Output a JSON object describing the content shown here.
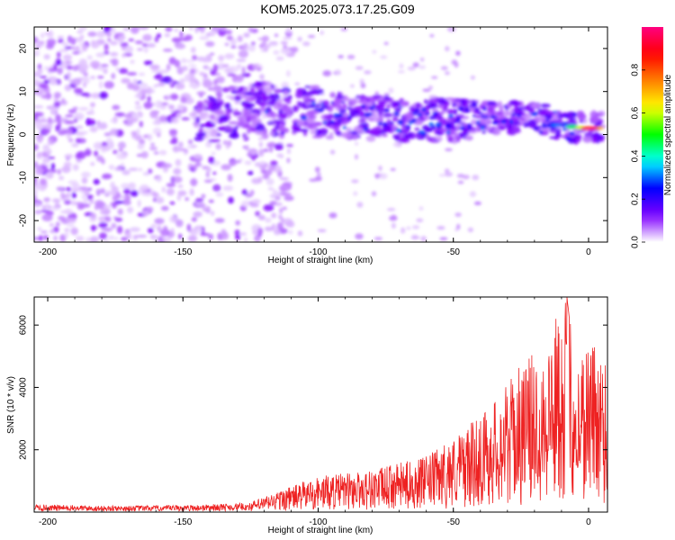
{
  "title": "KOM5.2025.073.17.25.G09",
  "chart_data": [
    {
      "type": "heatmap",
      "xlabel": "Height of straight line (km)",
      "ylabel": "Frequency (Hz)",
      "xlim": [
        -205,
        7
      ],
      "ylim": [
        -25,
        25
      ],
      "xticks": [
        -200,
        -150,
        -100,
        -50,
        0
      ],
      "yticks": [
        -20,
        -10,
        0,
        10,
        20
      ],
      "xtick_labels": [
        "-200",
        "-150",
        "-100",
        "-50",
        "0"
      ],
      "ytick_labels": [
        "-20",
        "-10",
        "0",
        "10",
        "20"
      ],
      "colorbar": {
        "label": "Normalized spectral amplitude",
        "range": [
          0,
          1
        ],
        "ticks": [
          0.0,
          0.2,
          0.4,
          0.6,
          0.8
        ],
        "tick_labels": [
          "0.0",
          "0.2",
          "0.4",
          "0.6",
          "0.8"
        ],
        "colors": [
          "#ffffff",
          "#8000ff",
          "#0000ff",
          "#00ffff",
          "#00ff00",
          "#ffff00",
          "#ff8000",
          "#ff0000",
          "#ff0080"
        ]
      },
      "ridge": [
        {
          "x": -140,
          "y": 4
        },
        {
          "x": -120,
          "y": 6
        },
        {
          "x": -100,
          "y": 5
        },
        {
          "x": -80,
          "y": 4
        },
        {
          "x": -60,
          "y": 3
        },
        {
          "x": -40,
          "y": 4
        },
        {
          "x": -20,
          "y": 4
        },
        {
          "x": -10,
          "y": 2
        },
        {
          "x": 0,
          "y": 1.5
        },
        {
          "x": 5,
          "y": 1.5
        }
      ]
    },
    {
      "type": "line",
      "xlabel": "Height of straight line (km)",
      "ylabel": "SNR (10 * v/v)",
      "xlim": [
        -205,
        7
      ],
      "ylim": [
        0,
        6900
      ],
      "xticks": [
        -200,
        -150,
        -100,
        -50,
        0
      ],
      "yticks": [
        2000,
        4000,
        6000
      ],
      "xtick_labels": [
        "-200",
        "-150",
        "-100",
        "-50",
        "0"
      ],
      "ytick_labels": [
        "2000",
        "4000",
        "6000"
      ],
      "color": "#ee2222",
      "envelope": [
        {
          "x": -205,
          "y": 250
        },
        {
          "x": -180,
          "y": 200
        },
        {
          "x": -150,
          "y": 220
        },
        {
          "x": -125,
          "y": 300
        },
        {
          "x": -110,
          "y": 800
        },
        {
          "x": -100,
          "y": 1100
        },
        {
          "x": -80,
          "y": 1300
        },
        {
          "x": -60,
          "y": 1700
        },
        {
          "x": -45,
          "y": 2600
        },
        {
          "x": -35,
          "y": 3400
        },
        {
          "x": -25,
          "y": 4500
        },
        {
          "x": -15,
          "y": 5300
        },
        {
          "x": -8,
          "y": 6900
        },
        {
          "x": -5,
          "y": 4600
        },
        {
          "x": 0,
          "y": 5500
        },
        {
          "x": 7,
          "y": 4800
        }
      ]
    }
  ]
}
